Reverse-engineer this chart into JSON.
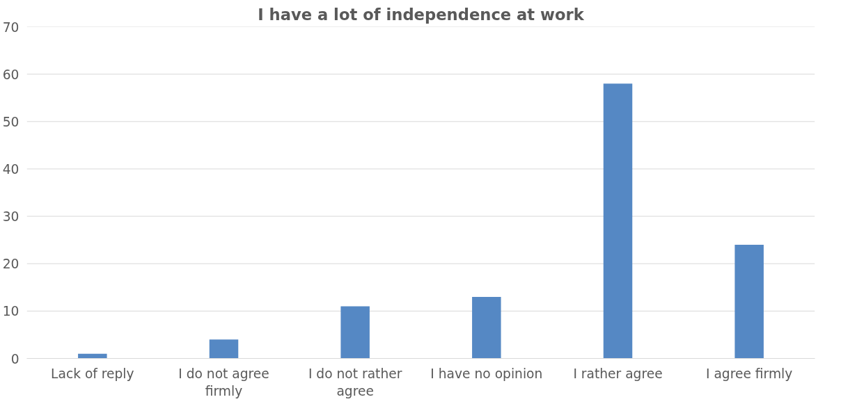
{
  "chart_data": {
    "type": "bar",
    "title": "I have a lot of independence at work",
    "categories": [
      "Lack of reply",
      "I do not agree firmly",
      "I do not rather agree",
      "I have no opinion",
      "I rather agree",
      "I agree firmly"
    ],
    "values": [
      1,
      4,
      11,
      13,
      58,
      24
    ],
    "color": "#5588c4",
    "ylim": [
      0,
      70
    ],
    "yticks": [
      0,
      10,
      20,
      30,
      40,
      50,
      60,
      70
    ],
    "grid": "y"
  }
}
